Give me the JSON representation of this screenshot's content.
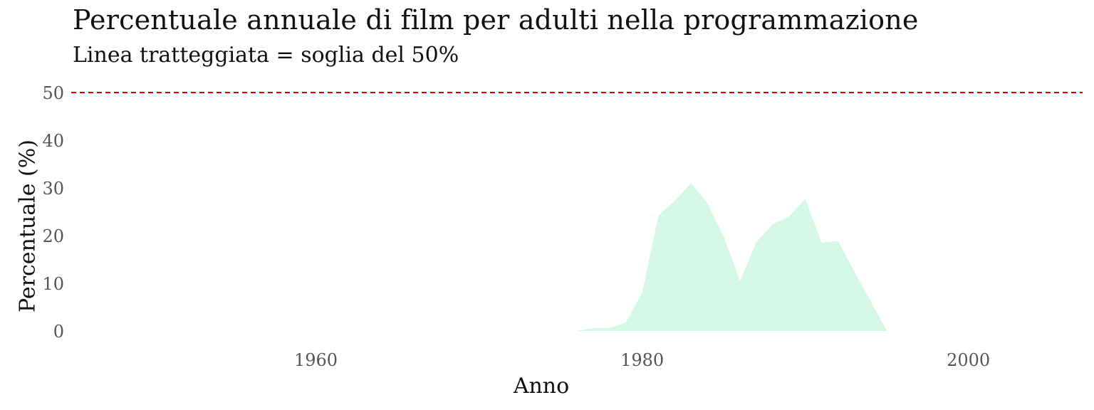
{
  "chart_data": {
    "type": "area",
    "title": "Percentuale annuale di film per adulti nella programmazione",
    "subtitle": "Linea tratteggiata = soglia del 50%",
    "xlabel": "Anno",
    "ylabel": "Percentuale (%)",
    "xlim": [
      1945,
      2007
    ],
    "ylim": [
      0,
      50
    ],
    "x_ticks": [
      1960,
      1980,
      2000
    ],
    "y_ticks": [
      0,
      10,
      20,
      30,
      40,
      50
    ],
    "grid": false,
    "legend": "none",
    "threshold": {
      "value": 50,
      "style": "dashed",
      "color": "#cc0000"
    },
    "series": [
      {
        "fill_color": "#d5f7e5",
        "x": [
          1976,
          1977,
          1978,
          1979,
          1980,
          1981,
          1982,
          1983,
          1984,
          1985,
          1986,
          1987,
          1988,
          1989,
          1990,
          1991,
          1992,
          1993,
          1994,
          1995
        ],
        "y": [
          0,
          0.6,
          0.6,
          1.8,
          8.0,
          24.2,
          27.3,
          31.0,
          26.8,
          19.8,
          10.5,
          18.6,
          22.4,
          24.0,
          27.7,
          18.5,
          18.9,
          12.5,
          6.3,
          0
        ]
      }
    ]
  }
}
